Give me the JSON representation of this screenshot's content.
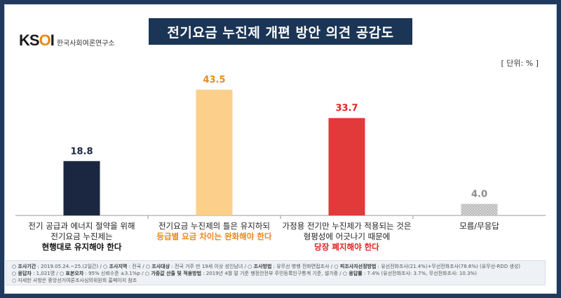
{
  "brand": {
    "mark_a": "K",
    "mark_s": "S",
    "mark_o": "O",
    "mark_i": "I",
    "org_name": "한국사회여론연구소"
  },
  "title": "전기요금 누진제 개편 방안 의견 공감도",
  "unit_label": "[ 단위: % ]",
  "colors": {
    "bar1": "#1b2740",
    "bar2": "#fccf8a",
    "bar3": "#e23a3a",
    "bar4": "#c8c8c8",
    "label1": "#1b2740",
    "label2": "#e8891e",
    "label3": "#e02020",
    "label4": "#8c8c8c",
    "emph2": "#e8891e",
    "emph3": "#e02020"
  },
  "categories": [
    {
      "line1": "전기 공급과 에너지 절약을 위해",
      "line2": "전기요금 누진제는",
      "emph": "현행대로 유지해야 한다"
    },
    {
      "line1": "전기요금 누진제의 틀은 유지하되",
      "line2": "",
      "emph": "등급별 요금 차이는 완화해야 한다"
    },
    {
      "line1": "가정용 전기만 누진제가 적용되는 것은",
      "line2": "형평성에 어긋나기 때문에",
      "emph": "당장 폐지해야 한다"
    },
    {
      "line1": "모름/무응답",
      "line2": "",
      "emph": ""
    }
  ],
  "chart_data": {
    "type": "bar",
    "title": "전기요금 누진제 개편 방안 의견 공감도",
    "unit": "%",
    "categories": [
      "현행대로 유지해야 한다",
      "등급별 요금 차이는 완화해야 한다",
      "당장 폐지해야 한다",
      "모름/무응답"
    ],
    "values": [
      18.8,
      43.5,
      33.7,
      4.0
    ],
    "value_labels": [
      "18.8",
      "43.5",
      "33.7",
      "4.0"
    ],
    "ylim": [
      0,
      45
    ],
    "grid": false,
    "legend": "none"
  },
  "footer": {
    "line1": [
      {
        "k": "조사기간",
        "v": ": 2019.05.24.~25.(2일간)"
      },
      {
        "k": "조사지역",
        "v": ": 전국"
      },
      {
        "k": "조사대상",
        "v": ": 전국 거주 만 19세 이상 성인남녀"
      },
      {
        "k": "조사방법",
        "v": ": 유무선 병행 전화면접조사"
      },
      {
        "k": "피조사자선정방법",
        "v": ": 유선전화조사(21.4%)+무선전화조사(78.6%) (유무선-RDD 생성)"
      }
    ],
    "line2": [
      {
        "k": "응답자",
        "v": ": 1,021명"
      },
      {
        "k": "표본오차",
        "v": ": 95% 신뢰수준 ±3.1%p"
      },
      {
        "k": "가중값 산출 및 적용방법",
        "v": ": 2019년 4월 말 기준 행정안전부 주민등록인구통계 기준, 셀가중"
      },
      {
        "k": "응답률",
        "v": ": 7.4% (유선전화조사: 3.7%, 무선전화조사: 10.3%)"
      }
    ],
    "line3": "자세한 사항은 중앙선거여론조사심의위원회 홈페이지 참조"
  }
}
